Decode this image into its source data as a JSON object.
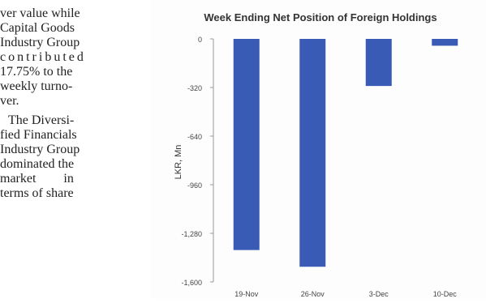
{
  "article": {
    "lines": [
      "ver value while",
      "Capital Goods",
      "Industry Group",
      "contributed",
      "17.75% to the",
      "weekly turno-",
      "ver.",
      "The Diversi-",
      "fied Financials",
      "Industry Group",
      "dominated the",
      "market in",
      "terms of share"
    ]
  },
  "chart_data": {
    "type": "bar",
    "title": "Week Ending Net Position of Foreign Holdings",
    "ylabel": "LKR, Mn",
    "xlabel": "",
    "categories": [
      "19-Nov",
      "26-Nov",
      "3-Dec",
      "10-Dec"
    ],
    "values": [
      -1390,
      -1500,
      -310,
      -45
    ],
    "ylim": [
      -1600,
      0
    ],
    "yticks": [
      0,
      -320,
      -640,
      -960,
      -1280,
      -1600
    ],
    "ytick_labels": [
      "0",
      "-320",
      "-640",
      "-960",
      "-1,280",
      "-1,600"
    ],
    "bar_color": "#3a5bb5",
    "grid": false,
    "legend": "none"
  }
}
